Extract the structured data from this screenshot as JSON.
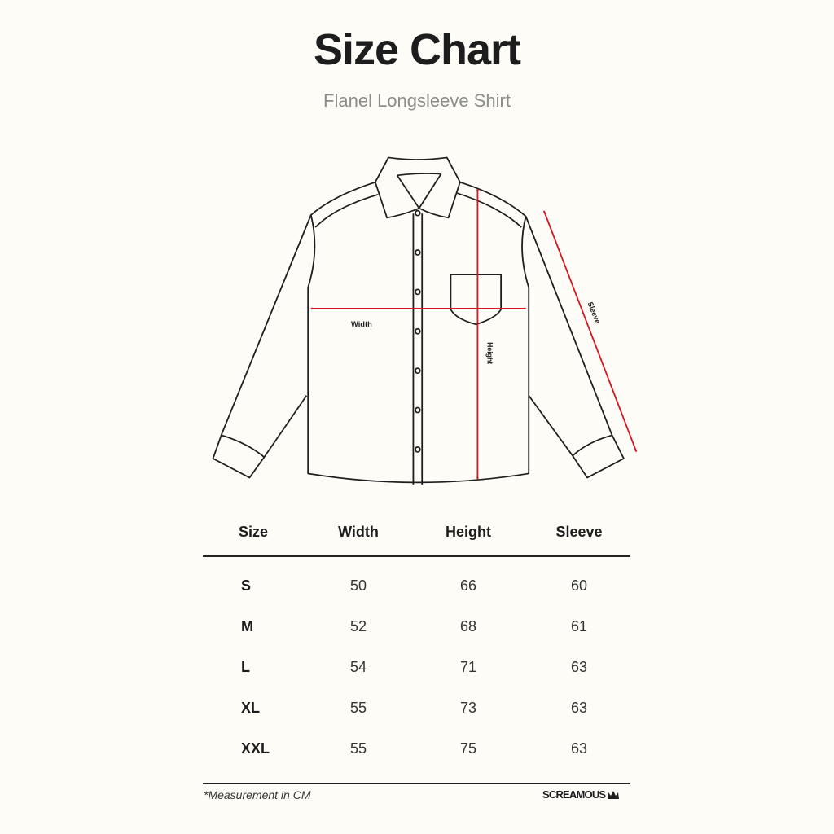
{
  "title": "Size Chart",
  "subtitle": "Flanel Longsleeve Shirt",
  "diagram": {
    "labels": {
      "width": "Width",
      "height": "Height",
      "sleeve": "Sleeve"
    },
    "arrow_color": "#d7141f"
  },
  "table": {
    "headers": [
      "Size",
      "Width",
      "Height",
      "Sleeve"
    ],
    "rows": [
      [
        "S",
        "50",
        "66",
        "60"
      ],
      [
        "M",
        "52",
        "68",
        "61"
      ],
      [
        "L",
        "54",
        "71",
        "63"
      ],
      [
        "XL",
        "55",
        "73",
        "63"
      ],
      [
        "XXL",
        "55",
        "75",
        "63"
      ]
    ]
  },
  "footnote": "*Measurement in CM",
  "brand": "SCREAMOUS"
}
